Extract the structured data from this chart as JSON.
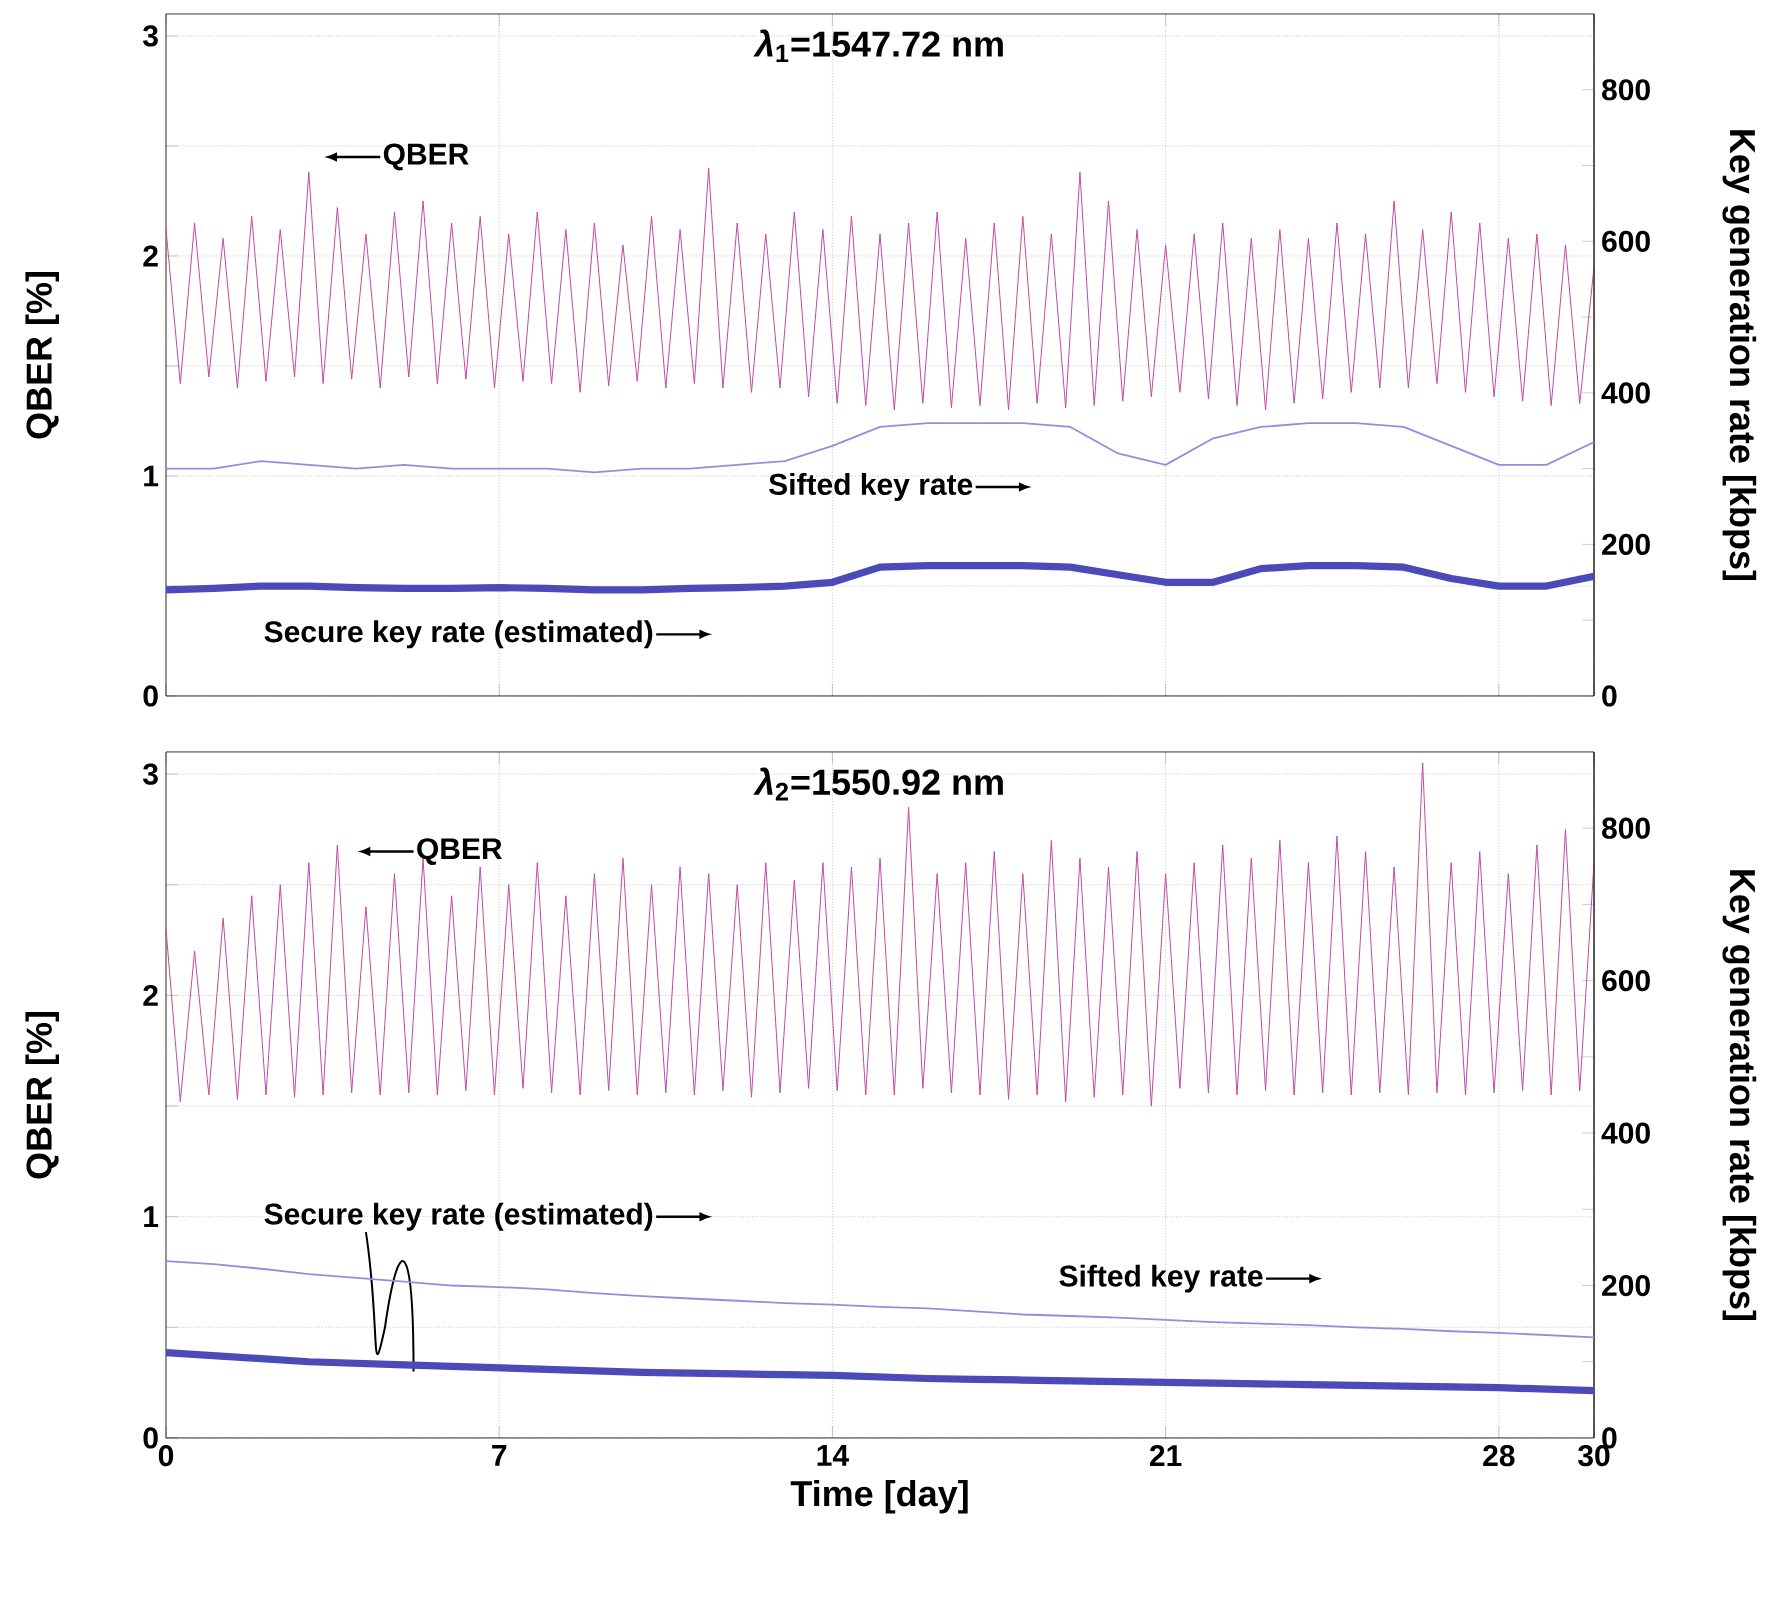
{
  "chart_data": [
    {
      "type": "line",
      "title": "*λ*$_{1}$=1547.72 nm",
      "ylabel": "QBER [%]",
      "y2label": "Key generation rate [kbps]",
      "xlim": [
        0,
        30
      ],
      "xticks": [
        0,
        7,
        14,
        21,
        28,
        30
      ],
      "ylim": [
        0,
        3.1
      ],
      "yticks": [
        0,
        {
          "value": 0.5,
          "label": null
        },
        1,
        {
          "value": 1.5,
          "label": null
        },
        2,
        {
          "value": 2.5,
          "label": null
        },
        3
      ],
      "y2lim": [
        0,
        900
      ],
      "y2ticks": [
        0,
        {
          "value": 100,
          "label": null
        },
        200,
        {
          "value": 300,
          "label": null
        },
        400,
        {
          "value": 500,
          "label": null
        },
        600,
        {
          "value": 700,
          "label": null
        },
        800
      ],
      "grid": true,
      "tick_labels": "y",
      "series": [
        {
          "name": "QBER",
          "color": "#c04aa6",
          "x": [
            0,
            0.3,
            0.6,
            0.9,
            1.2,
            1.5,
            1.8,
            2.1,
            2.4,
            2.7,
            3,
            3.3,
            3.6,
            3.9,
            4.2,
            4.5,
            4.8,
            5.1,
            5.4,
            5.7,
            6,
            6.3,
            6.6,
            6.9,
            7.2,
            7.5,
            7.8,
            8.1,
            8.4,
            8.7,
            9,
            9.3,
            9.6,
            9.9,
            10.2,
            10.5,
            10.8,
            11.1,
            11.4,
            11.7,
            12,
            12.3,
            12.6,
            12.9,
            13.2,
            13.5,
            13.8,
            14.1,
            14.4,
            14.7,
            15,
            15.3,
            15.6,
            15.9,
            16.2,
            16.5,
            16.8,
            17.1,
            17.4,
            17.7,
            18,
            18.3,
            18.6,
            18.9,
            19.2,
            19.5,
            19.8,
            20.1,
            20.4,
            20.7,
            21,
            21.3,
            21.6,
            21.9,
            22.2,
            22.5,
            22.8,
            23.1,
            23.4,
            23.7,
            24,
            24.3,
            24.6,
            24.9,
            25.2,
            25.5,
            25.8,
            26.1,
            26.4,
            26.7,
            27,
            27.3,
            27.6,
            27.9,
            28.2,
            28.5,
            28.8,
            29.1,
            29.4,
            29.7,
            30
          ],
          "values": [
            2.12,
            1.42,
            2.15,
            1.45,
            2.08,
            1.4,
            2.18,
            1.43,
            2.12,
            1.45,
            2.38,
            1.42,
            2.22,
            1.44,
            2.1,
            1.4,
            2.2,
            1.45,
            2.25,
            1.42,
            2.15,
            1.44,
            2.18,
            1.4,
            2.1,
            1.43,
            2.2,
            1.42,
            2.12,
            1.38,
            2.15,
            1.41,
            2.05,
            1.43,
            2.18,
            1.4,
            2.12,
            1.42,
            2.4,
            1.4,
            2.15,
            1.38,
            2.1,
            1.4,
            2.2,
            1.36,
            2.12,
            1.33,
            2.18,
            1.32,
            2.1,
            1.3,
            2.15,
            1.33,
            2.2,
            1.31,
            2.08,
            1.32,
            2.15,
            1.3,
            2.18,
            1.33,
            2.1,
            1.31,
            2.38,
            1.32,
            2.25,
            1.34,
            2.12,
            1.36,
            2.05,
            1.38,
            2.1,
            1.35,
            2.15,
            1.32,
            2.08,
            1.3,
            2.12,
            1.33,
            2.08,
            1.35,
            2.15,
            1.38,
            2.1,
            1.4,
            2.25,
            1.4,
            2.12,
            1.42,
            2.2,
            1.38,
            2.15,
            1.36,
            2.08,
            1.34,
            2.1,
            1.32,
            2.05,
            1.33,
            1.95
          ]
        },
        {
          "name": "Sifted key rate",
          "axis": "y2",
          "color": "#8f8fe0",
          "x": [
            0,
            1,
            2,
            3,
            4,
            5,
            6,
            7,
            8,
            9,
            10,
            11,
            12,
            13,
            14,
            15,
            16,
            17,
            18,
            19,
            20,
            21,
            22,
            23,
            24,
            25,
            26,
            27,
            28,
            29,
            30
          ],
          "values": [
            300,
            300,
            310,
            305,
            300,
            305,
            300,
            300,
            300,
            295,
            300,
            300,
            305,
            310,
            330,
            355,
            360,
            360,
            360,
            355,
            320,
            305,
            340,
            355,
            360,
            360,
            355,
            330,
            305,
            305,
            335
          ]
        },
        {
          "name": "Secure key rate (estimated)",
          "axis": "y2",
          "color": "#4a4ab8",
          "x": [
            0,
            1,
            2,
            3,
            4,
            5,
            6,
            7,
            8,
            9,
            10,
            11,
            12,
            13,
            14,
            15,
            16,
            17,
            18,
            19,
            20,
            21,
            22,
            23,
            24,
            25,
            26,
            27,
            28,
            29,
            30
          ],
          "values": [
            140,
            142,
            145,
            145,
            143,
            142,
            142,
            143,
            142,
            140,
            140,
            142,
            143,
            145,
            150,
            170,
            172,
            172,
            172,
            170,
            160,
            150,
            150,
            168,
            172,
            172,
            170,
            155,
            145,
            145,
            158
          ]
        }
      ]
    },
    {
      "type": "line",
      "title": "*λ*$_{2}$=1550.92 nm",
      "xlabel": "Time [day]",
      "ylabel": "QBER [%]",
      "y2label": "Key generation rate [kbps]",
      "xlim": [
        0,
        30
      ],
      "xticks": [
        0,
        7,
        14,
        21,
        28,
        30
      ],
      "ylim": [
        0,
        3.1
      ],
      "yticks": [
        0,
        {
          "value": 0.5,
          "label": null
        },
        1,
        {
          "value": 1.5,
          "label": null
        },
        2,
        {
          "value": 2.5,
          "label": null
        },
        3
      ],
      "y2lim": [
        0,
        900
      ],
      "y2ticks": [
        0,
        {
          "value": 100,
          "label": null
        },
        200,
        {
          "value": 300,
          "label": null
        },
        400,
        {
          "value": 500,
          "label": null
        },
        600,
        {
          "value": 700,
          "label": null
        },
        800
      ],
      "grid": true,
      "series": [
        {
          "name": "QBER",
          "color": "#c04aa6",
          "x": [
            0,
            0.3,
            0.6,
            0.9,
            1.2,
            1.5,
            1.8,
            2.1,
            2.4,
            2.7,
            3,
            3.3,
            3.6,
            3.9,
            4.2,
            4.5,
            4.8,
            5.1,
            5.4,
            5.7,
            6,
            6.3,
            6.6,
            6.9,
            7.2,
            7.5,
            7.8,
            8.1,
            8.4,
            8.7,
            9,
            9.3,
            9.6,
            9.9,
            10.2,
            10.5,
            10.8,
            11.1,
            11.4,
            11.7,
            12,
            12.3,
            12.6,
            12.9,
            13.2,
            13.5,
            13.8,
            14.1,
            14.4,
            14.7,
            15,
            15.3,
            15.6,
            15.9,
            16.2,
            16.5,
            16.8,
            17.1,
            17.4,
            17.7,
            18,
            18.3,
            18.6,
            18.9,
            19.2,
            19.5,
            19.8,
            20.1,
            20.4,
            20.7,
            21,
            21.3,
            21.6,
            21.9,
            22.2,
            22.5,
            22.8,
            23.1,
            23.4,
            23.7,
            24,
            24.3,
            24.6,
            24.9,
            25.2,
            25.5,
            25.8,
            26.1,
            26.4,
            26.7,
            27,
            27.3,
            27.6,
            27.9,
            28.2,
            28.5,
            28.8,
            29.1,
            29.4,
            29.7,
            30
          ],
          "values": [
            2.3,
            1.52,
            2.2,
            1.55,
            2.35,
            1.53,
            2.45,
            1.55,
            2.5,
            1.54,
            2.6,
            1.55,
            2.68,
            1.56,
            2.4,
            1.55,
            2.55,
            1.56,
            2.62,
            1.55,
            2.45,
            1.57,
            2.58,
            1.55,
            2.5,
            1.58,
            2.6,
            1.56,
            2.45,
            1.55,
            2.55,
            1.57,
            2.62,
            1.55,
            2.5,
            1.56,
            2.58,
            1.55,
            2.55,
            1.57,
            2.5,
            1.54,
            2.6,
            1.56,
            2.52,
            1.58,
            2.6,
            1.57,
            2.58,
            1.55,
            2.62,
            1.55,
            2.85,
            1.58,
            2.55,
            1.56,
            2.6,
            1.55,
            2.65,
            1.53,
            2.55,
            1.55,
            2.7,
            1.52,
            2.62,
            1.54,
            2.58,
            1.55,
            2.65,
            1.5,
            2.55,
            1.58,
            2.6,
            1.56,
            2.68,
            1.55,
            2.62,
            1.57,
            2.7,
            1.55,
            2.6,
            1.56,
            2.72,
            1.55,
            2.65,
            1.56,
            2.58,
            1.55,
            3.05,
            1.56,
            2.6,
            1.55,
            2.65,
            1.56,
            2.55,
            1.57,
            2.68,
            1.55,
            2.75,
            1.57,
            2.6
          ]
        },
        {
          "name": "Sifted key rate",
          "axis": "y2",
          "color": "#8f8fe0",
          "x": [
            0,
            1,
            2,
            3,
            4,
            5,
            6,
            7,
            8,
            9,
            10,
            11,
            12,
            13,
            14,
            15,
            16,
            17,
            18,
            19,
            20,
            21,
            22,
            23,
            24,
            25,
            26,
            27,
            28,
            29,
            30
          ],
          "values": [
            232,
            228,
            222,
            215,
            210,
            205,
            200,
            198,
            195,
            190,
            186,
            183,
            180,
            177,
            175,
            172,
            170,
            166,
            162,
            160,
            158,
            155,
            152,
            150,
            148,
            145,
            143,
            140,
            138,
            135,
            132
          ]
        },
        {
          "name": "Secure key rate (estimated)",
          "axis": "y2",
          "color": "#4a4ab8",
          "x": [
            0,
            1,
            2,
            3,
            4,
            5,
            6,
            7,
            8,
            9,
            10,
            11,
            12,
            13,
            14,
            15,
            16,
            17,
            18,
            19,
            20,
            21,
            22,
            23,
            24,
            25,
            26,
            27,
            28,
            29,
            30
          ],
          "values": [
            112,
            108,
            104,
            100,
            98,
            96,
            94,
            92,
            90,
            88,
            86,
            85,
            84,
            83,
            82,
            80,
            78,
            77,
            76,
            75,
            74,
            73,
            72,
            71,
            70,
            69,
            68,
            67,
            66,
            64,
            62
          ]
        }
      ]
    }
  ]
}
